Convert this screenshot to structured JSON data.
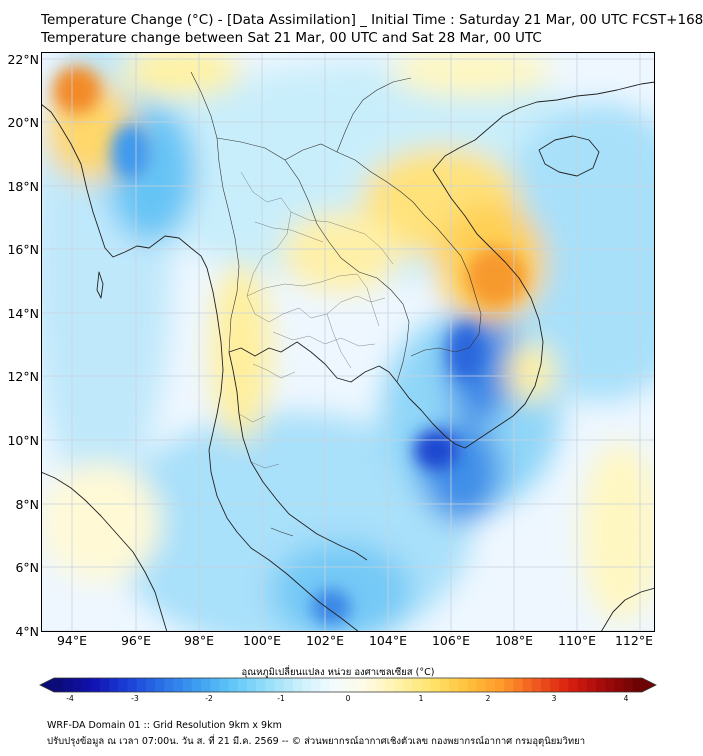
{
  "header": {
    "title_line1": "Temperature Change (°C) - [Data Assimilation] _ Initial Time : Saturday 21 Mar, 00 UTC FCST+168",
    "title_line2": "Temperature change between Sat 21 Mar, 00 UTC and Sat 28 Mar, 00 UTC"
  },
  "map": {
    "lat_labels": [
      "22°N",
      "20°N",
      "18°N",
      "16°N",
      "14°N",
      "12°N",
      "10°N",
      "8°N",
      "6°N",
      "4°N"
    ],
    "lon_labels": [
      "94°E",
      "96°E",
      "98°E",
      "100°E",
      "102°E",
      "104°E",
      "106°E",
      "108°E",
      "110°E",
      "112°E"
    ],
    "ocean_color": "#eef7ff",
    "grid_color": "#c8d2dc"
  },
  "colorbar": {
    "label": "อุณหภูมิเปลี่ยนแปลง หน่วย องศาเซลเซียส (°C)",
    "ticks": [
      "-4",
      "-3",
      "-2",
      "-1",
      "0",
      "1",
      "2",
      "3",
      "4"
    ],
    "colors": [
      "#0b0b7a",
      "#1111b0",
      "#1a3fd6",
      "#2a6ee6",
      "#3d9bf0",
      "#5cc4f7",
      "#8fdcf9",
      "#c6eefb",
      "#f2fbff",
      "#fffbe6",
      "#fff2a8",
      "#ffe36a",
      "#ffc13d",
      "#ff9a2b",
      "#f05a1e",
      "#d91e10",
      "#a30a0a",
      "#6e0303"
    ]
  },
  "footer": {
    "line1": "WRF-DA Domain 01 :: Grid Resolution 9km x 9km",
    "line2": "ปรับปรุงข้อมูล ณ เวลา 07:00น. วัน ส. ที่ 21 มี.ค. 2569 -- © ส่วนพยากรณ์อากาศเชิงตัวเลข กองพยากรณ์อากาศ กรมอุตุนิยมวิทยา"
  }
}
